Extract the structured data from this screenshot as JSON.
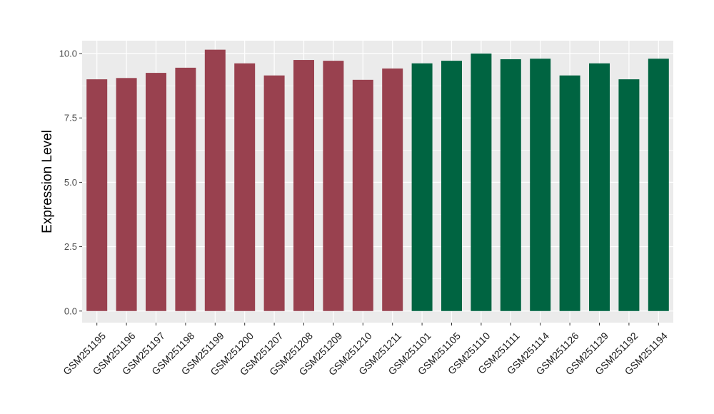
{
  "chart_data": {
    "type": "bar",
    "title": "",
    "xlabel": "",
    "ylabel": "Expression Level",
    "ylim": [
      -0.45,
      10.5
    ],
    "yticks": [
      0.0,
      2.5,
      5.0,
      7.5,
      10.0
    ],
    "ytick_labels": [
      "0.0",
      "2.5",
      "5.0",
      "7.5",
      "10.0"
    ],
    "grid": true,
    "legend": "none",
    "categories": [
      "GSM251195",
      "GSM251196",
      "GSM251197",
      "GSM251198",
      "GSM251199",
      "GSM251200",
      "GSM251207",
      "GSM251208",
      "GSM251209",
      "GSM251210",
      "GSM251211",
      "GSM251101",
      "GSM251105",
      "GSM251110",
      "GSM251111",
      "GSM251114",
      "GSM251126",
      "GSM251129",
      "GSM251192",
      "GSM251194"
    ],
    "values": [
      9.0,
      9.05,
      9.25,
      9.45,
      10.15,
      9.62,
      9.15,
      9.75,
      9.72,
      8.98,
      9.42,
      9.62,
      9.72,
      10.0,
      9.78,
      9.8,
      9.15,
      9.62,
      9.0,
      9.8
    ],
    "bar_colors": [
      "#99414f",
      "#99414f",
      "#99414f",
      "#99414f",
      "#99414f",
      "#99414f",
      "#99414f",
      "#99414f",
      "#99414f",
      "#99414f",
      "#99414f",
      "#006441",
      "#006441",
      "#006441",
      "#006441",
      "#006441",
      "#006441",
      "#006441",
      "#006441",
      "#006441"
    ],
    "panel_background": "#ebebeb",
    "grid_color": "#ffffff"
  }
}
